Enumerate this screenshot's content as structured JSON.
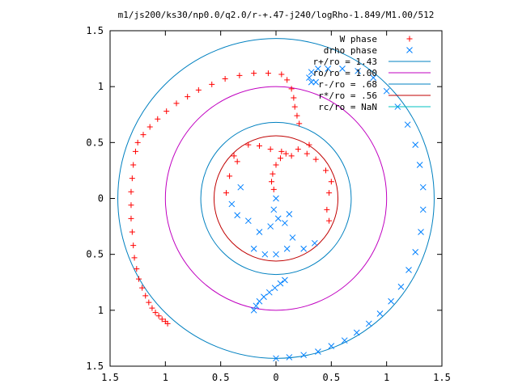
{
  "chart_data": {
    "type": "scatter",
    "title": "m1/js200/ks30/np0.0/q2.0/r-+.47-j240/logRho-1.849/M1.00/512",
    "xlim": [
      -1.5,
      1.5
    ],
    "ylim": [
      -1.5,
      1.5
    ],
    "x_ticks": [
      -1.5,
      -1,
      -0.5,
      0,
      0.5,
      1,
      1.5
    ],
    "x_tick_labels": [
      "1.5",
      "1",
      "0.5",
      "0",
      "0.5",
      "1",
      "1.5"
    ],
    "y_ticks": [
      1.5,
      1,
      0.5,
      0,
      -0.5,
      -1,
      -1.5
    ],
    "y_tick_labels": [
      "1.5",
      "1",
      "0.5",
      "0",
      "0.5",
      "1",
      "1.5"
    ],
    "grid": false,
    "legend_position": "top-right",
    "colors": {
      "w_phase": "#ff0000",
      "drho_phase": "#0080ff",
      "circle_143": "#0080c0",
      "circle_100": "#c000c0",
      "circle_068": "#0080c0",
      "circle_056": "#c00000",
      "circle_nan": "#00c0c0"
    },
    "legend": [
      {
        "key": "w",
        "label": "W phase",
        "color": "#ff0000",
        "marker": "+"
      },
      {
        "key": "drho",
        "label": "drho phase",
        "color": "#0080ff",
        "marker": "x"
      },
      {
        "key": "c143",
        "label": "r+/ro = 1.43",
        "color": "#0080c0",
        "marker": "line"
      },
      {
        "key": "c100",
        "label": "ro/ro = 1.00",
        "color": "#c000c0",
        "marker": "line"
      },
      {
        "key": "c068",
        "label": "r-/ro = .68",
        "color": "#0080c0",
        "marker": "line"
      },
      {
        "key": "c056",
        "label": "r*/ro = .56",
        "color": "#c00000",
        "marker": "line"
      },
      {
        "key": "cnan",
        "label": "rc/ro = NaN",
        "color": "#00c0c0",
        "marker": "line"
      }
    ],
    "circles": [
      {
        "name": "r+/ro = 1.43",
        "r": 1.43,
        "color": "#0080c0"
      },
      {
        "name": "ro/ro = 1.00",
        "r": 1.0,
        "color": "#c000c0"
      },
      {
        "name": "r-/ro = .68",
        "r": 0.68,
        "color": "#0080c0"
      },
      {
        "name": "r*/ro = .56",
        "r": 0.56,
        "color": "#c00000"
      }
    ],
    "series": [
      {
        "name": "W phase",
        "marker": "+",
        "color": "#ff0000",
        "points": [
          [
            -0.98,
            -1.12
          ],
          [
            -1.0,
            -1.1
          ],
          [
            -1.03,
            -1.08
          ],
          [
            -1.06,
            -1.05
          ],
          [
            -1.09,
            -1.02
          ],
          [
            -1.12,
            -0.98
          ],
          [
            -1.15,
            -0.93
          ],
          [
            -1.18,
            -0.87
          ],
          [
            -1.21,
            -0.8
          ],
          [
            -1.24,
            -0.72
          ],
          [
            -1.26,
            -0.63
          ],
          [
            -1.28,
            -0.53
          ],
          [
            -1.29,
            -0.42
          ],
          [
            -1.3,
            -0.3
          ],
          [
            -1.31,
            -0.18
          ],
          [
            -1.31,
            -0.06
          ],
          [
            -1.31,
            0.06
          ],
          [
            -1.3,
            0.18
          ],
          [
            -1.29,
            0.3
          ],
          [
            -1.27,
            0.42
          ],
          [
            -1.25,
            0.5
          ],
          [
            -1.2,
            0.57
          ],
          [
            -1.14,
            0.64
          ],
          [
            -1.07,
            0.71
          ],
          [
            -0.99,
            0.78
          ],
          [
            -0.9,
            0.85
          ],
          [
            -0.8,
            0.91
          ],
          [
            -0.7,
            0.97
          ],
          [
            -0.58,
            1.02
          ],
          [
            -0.46,
            1.07
          ],
          [
            -0.33,
            1.1
          ],
          [
            -0.2,
            1.12
          ],
          [
            -0.07,
            1.12
          ],
          [
            0.05,
            1.11
          ],
          [
            0.1,
            1.06
          ],
          [
            0.14,
            0.98
          ],
          [
            0.16,
            0.9
          ],
          [
            0.17,
            0.82
          ],
          [
            0.19,
            0.74
          ],
          [
            0.21,
            0.67
          ],
          [
            -0.02,
            0.08
          ],
          [
            -0.04,
            0.15
          ],
          [
            -0.03,
            0.22
          ],
          [
            0.0,
            0.3
          ],
          [
            0.04,
            0.36
          ],
          [
            0.09,
            0.4
          ],
          [
            0.14,
            0.38
          ],
          [
            0.05,
            0.42
          ],
          [
            -0.05,
            0.44
          ],
          [
            -0.15,
            0.47
          ],
          [
            0.2,
            0.44
          ],
          [
            0.28,
            0.4
          ],
          [
            0.36,
            0.35
          ],
          [
            0.45,
            0.25
          ],
          [
            0.5,
            0.15
          ],
          [
            0.48,
            0.05
          ],
          [
            0.46,
            -0.1
          ],
          [
            0.48,
            -0.2
          ],
          [
            -0.35,
            0.33
          ],
          [
            -0.42,
            0.2
          ],
          [
            -0.45,
            0.05
          ],
          [
            -0.38,
            0.38
          ],
          [
            -0.25,
            0.48
          ],
          [
            0.3,
            0.48
          ]
        ]
      },
      {
        "name": "drho phase",
        "marker": "x",
        "color": "#0080ff",
        "points": [
          [
            -0.2,
            -1.0
          ],
          [
            -0.18,
            -0.96
          ],
          [
            -0.15,
            -0.92
          ],
          [
            -0.11,
            -0.88
          ],
          [
            -0.06,
            -0.84
          ],
          [
            -0.01,
            -0.8
          ],
          [
            0.04,
            -0.76
          ],
          [
            0.08,
            -0.73
          ],
          [
            0.0,
            -1.43
          ],
          [
            0.12,
            -1.42
          ],
          [
            0.25,
            -1.4
          ],
          [
            0.38,
            -1.37
          ],
          [
            0.5,
            -1.32
          ],
          [
            0.62,
            -1.27
          ],
          [
            0.73,
            -1.2
          ],
          [
            0.84,
            -1.12
          ],
          [
            0.94,
            -1.03
          ],
          [
            1.04,
            -0.92
          ],
          [
            1.13,
            -0.79
          ],
          [
            1.2,
            -0.64
          ],
          [
            1.26,
            -0.48
          ],
          [
            1.31,
            -0.3
          ],
          [
            1.33,
            -0.1
          ],
          [
            1.33,
            0.1
          ],
          [
            1.3,
            0.3
          ],
          [
            1.26,
            0.48
          ],
          [
            1.19,
            0.66
          ],
          [
            1.1,
            0.82
          ],
          [
            1.0,
            0.96
          ],
          [
            0.88,
            1.08
          ],
          [
            0.74,
            1.14
          ],
          [
            0.6,
            1.16
          ],
          [
            0.47,
            1.16
          ],
          [
            0.38,
            1.16
          ],
          [
            0.32,
            1.13
          ],
          [
            0.3,
            1.08
          ],
          [
            0.32,
            1.04
          ],
          [
            0.36,
            1.04
          ],
          [
            0.0,
            0.0
          ],
          [
            -0.02,
            -0.1
          ],
          [
            0.02,
            -0.18
          ],
          [
            0.08,
            -0.22
          ],
          [
            0.12,
            -0.14
          ],
          [
            -0.05,
            -0.25
          ],
          [
            -0.15,
            -0.3
          ],
          [
            -0.25,
            -0.2
          ],
          [
            -0.35,
            -0.15
          ],
          [
            -0.4,
            -0.05
          ],
          [
            -0.32,
            0.1
          ],
          [
            0.15,
            -0.35
          ],
          [
            0.1,
            -0.45
          ],
          [
            0.0,
            -0.5
          ],
          [
            -0.1,
            -0.5
          ],
          [
            -0.2,
            -0.45
          ],
          [
            0.25,
            -0.45
          ],
          [
            0.35,
            -0.4
          ]
        ]
      }
    ]
  }
}
